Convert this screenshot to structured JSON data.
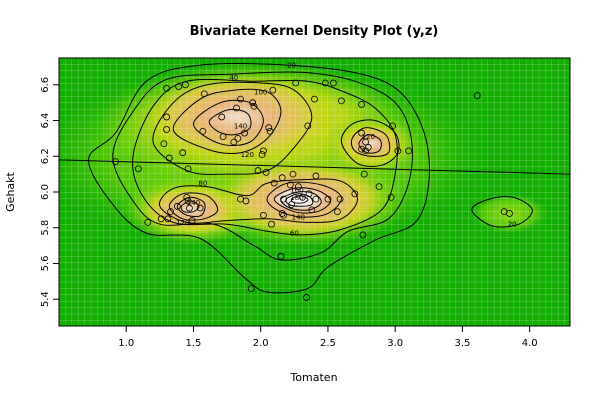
{
  "chart_data": {
    "type": "contour",
    "title": "Bivariate Kernel Density Plot (y,z)",
    "xlabel": "Tomaten",
    "ylabel": "Gehakt",
    "xlim": [
      0.5,
      4.3
    ],
    "ylim": [
      5.25,
      6.75
    ],
    "xticks": [
      "1.0",
      "1.5",
      "2.0",
      "2.5",
      "3.0",
      "3.5",
      "4.0"
    ],
    "xtick_values": [
      1.0,
      1.5,
      2.0,
      2.5,
      3.0,
      3.5,
      4.0
    ],
    "yticks": [
      "5.4",
      "5.6",
      "5.8",
      "6.0",
      "6.2",
      "6.4",
      "6.6"
    ],
    "ytick_values": [
      5.4,
      5.6,
      5.8,
      6.0,
      6.2,
      6.4,
      6.6
    ],
    "grid": true,
    "contour_levels": [
      20,
      40,
      60,
      80,
      100,
      120,
      140,
      160,
      180
    ],
    "contour_labels": [
      {
        "text": "20",
        "x": 2.23,
        "y": 6.71
      },
      {
        "text": "40",
        "x": 1.8,
        "y": 6.64
      },
      {
        "text": "100",
        "x": 2.0,
        "y": 6.56
      },
      {
        "text": "140",
        "x": 1.85,
        "y": 6.37
      },
      {
        "text": "120",
        "x": 1.9,
        "y": 6.21
      },
      {
        "text": "120",
        "x": 2.8,
        "y": 6.31
      },
      {
        "text": "80",
        "x": 1.57,
        "y": 6.05
      },
      {
        "text": "140",
        "x": 1.5,
        "y": 5.94
      },
      {
        "text": "120",
        "x": 1.42,
        "y": 5.83
      },
      {
        "text": "60",
        "x": 2.25,
        "y": 5.77
      },
      {
        "text": "140",
        "x": 2.28,
        "y": 5.86
      },
      {
        "text": "160",
        "x": 2.27,
        "y": 6.01
      },
      {
        "text": "180",
        "x": 2.27,
        "y": 5.97
      },
      {
        "text": "20",
        "x": 3.87,
        "y": 5.82
      }
    ],
    "regression_line": {
      "x": [
        0.5,
        4.3
      ],
      "y": [
        6.18,
        6.1
      ]
    },
    "points": [
      {
        "x": 0.92,
        "y": 6.17
      },
      {
        "x": 1.09,
        "y": 6.13
      },
      {
        "x": 1.16,
        "y": 5.83
      },
      {
        "x": 1.26,
        "y": 5.85
      },
      {
        "x": 1.28,
        "y": 6.27
      },
      {
        "x": 1.3,
        "y": 6.35
      },
      {
        "x": 1.3,
        "y": 6.42
      },
      {
        "x": 1.3,
        "y": 6.58
      },
      {
        "x": 1.31,
        "y": 5.85
      },
      {
        "x": 1.32,
        "y": 6.19
      },
      {
        "x": 1.33,
        "y": 5.89
      },
      {
        "x": 1.38,
        "y": 5.92
      },
      {
        "x": 1.39,
        "y": 6.59
      },
      {
        "x": 1.42,
        "y": 6.22
      },
      {
        "x": 1.44,
        "y": 6.6
      },
      {
        "x": 1.45,
        "y": 5.97
      },
      {
        "x": 1.46,
        "y": 5.95
      },
      {
        "x": 1.46,
        "y": 6.13
      },
      {
        "x": 1.47,
        "y": 5.91
      },
      {
        "x": 1.49,
        "y": 5.84
      },
      {
        "x": 1.55,
        "y": 5.91
      },
      {
        "x": 1.57,
        "y": 6.34
      },
      {
        "x": 1.58,
        "y": 6.55
      },
      {
        "x": 1.71,
        "y": 6.42
      },
      {
        "x": 1.72,
        "y": 6.31
      },
      {
        "x": 1.8,
        "y": 6.28
      },
      {
        "x": 1.82,
        "y": 6.47
      },
      {
        "x": 1.83,
        "y": 6.3
      },
      {
        "x": 1.85,
        "y": 5.96
      },
      {
        "x": 1.85,
        "y": 6.52
      },
      {
        "x": 1.88,
        "y": 6.33
      },
      {
        "x": 1.89,
        "y": 5.95
      },
      {
        "x": 1.93,
        "y": 5.46
      },
      {
        "x": 1.94,
        "y": 6.5
      },
      {
        "x": 1.95,
        "y": 6.48
      },
      {
        "x": 1.98,
        "y": 6.12
      },
      {
        "x": 2.01,
        "y": 6.21
      },
      {
        "x": 2.02,
        "y": 6.23
      },
      {
        "x": 2.02,
        "y": 5.87
      },
      {
        "x": 2.04,
        "y": 6.11
      },
      {
        "x": 2.06,
        "y": 6.36
      },
      {
        "x": 2.07,
        "y": 6.34
      },
      {
        "x": 2.08,
        "y": 5.82
      },
      {
        "x": 2.09,
        "y": 6.57
      },
      {
        "x": 2.1,
        "y": 6.05
      },
      {
        "x": 2.15,
        "y": 5.64
      },
      {
        "x": 2.16,
        "y": 5.88
      },
      {
        "x": 2.16,
        "y": 6.08
      },
      {
        "x": 2.17,
        "y": 5.96
      },
      {
        "x": 2.17,
        "y": 5.87
      },
      {
        "x": 2.22,
        "y": 6.04
      },
      {
        "x": 2.23,
        "y": 5.93
      },
      {
        "x": 2.24,
        "y": 6.1
      },
      {
        "x": 2.26,
        "y": 6.61
      },
      {
        "x": 2.28,
        "y": 6.03
      },
      {
        "x": 2.31,
        "y": 5.97
      },
      {
        "x": 2.34,
        "y": 5.41
      },
      {
        "x": 2.35,
        "y": 6.37
      },
      {
        "x": 2.36,
        "y": 5.99
      },
      {
        "x": 2.38,
        "y": 5.9
      },
      {
        "x": 2.4,
        "y": 6.52
      },
      {
        "x": 2.41,
        "y": 5.96
      },
      {
        "x": 2.41,
        "y": 6.09
      },
      {
        "x": 2.48,
        "y": 6.61
      },
      {
        "x": 2.5,
        "y": 5.96
      },
      {
        "x": 2.54,
        "y": 6.61
      },
      {
        "x": 2.57,
        "y": 5.89
      },
      {
        "x": 2.59,
        "y": 5.96
      },
      {
        "x": 2.6,
        "y": 6.51
      },
      {
        "x": 2.7,
        "y": 5.99
      },
      {
        "x": 2.75,
        "y": 6.49
      },
      {
        "x": 2.75,
        "y": 6.33
      },
      {
        "x": 2.75,
        "y": 6.24
      },
      {
        "x": 2.76,
        "y": 5.76
      },
      {
        "x": 2.77,
        "y": 6.1
      },
      {
        "x": 2.78,
        "y": 6.28
      },
      {
        "x": 2.78,
        "y": 6.23
      },
      {
        "x": 2.8,
        "y": 6.25
      },
      {
        "x": 2.88,
        "y": 6.03
      },
      {
        "x": 2.97,
        "y": 5.97
      },
      {
        "x": 2.98,
        "y": 6.37
      },
      {
        "x": 3.02,
        "y": 6.23
      },
      {
        "x": 3.1,
        "y": 6.23
      },
      {
        "x": 3.61,
        "y": 6.54
      },
      {
        "x": 3.81,
        "y": 5.89
      },
      {
        "x": 3.85,
        "y": 5.88
      }
    ]
  }
}
